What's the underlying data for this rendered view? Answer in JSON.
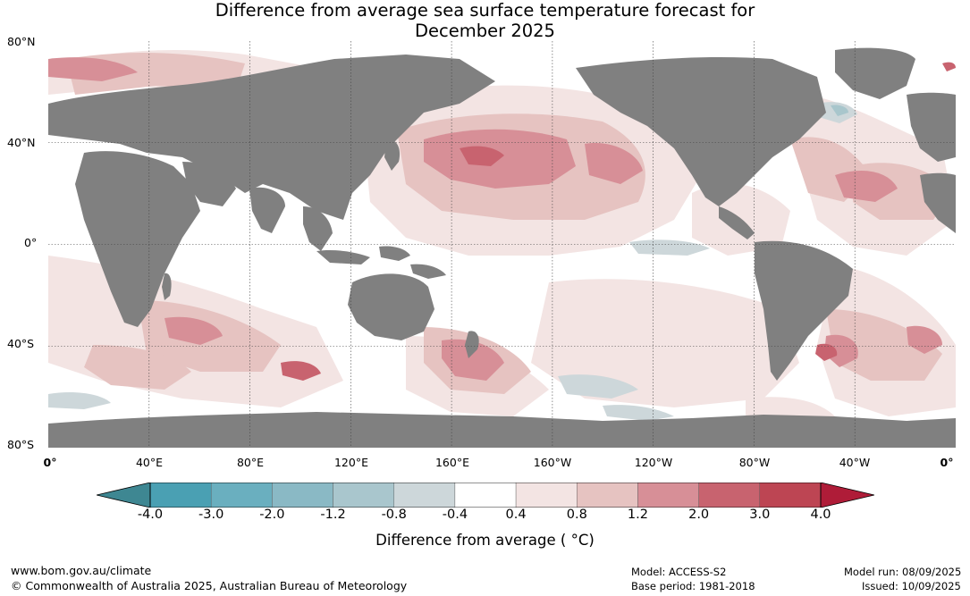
{
  "title": {
    "line1": "Difference from average sea surface temperature forecast for",
    "line2": "December 2025"
  },
  "map": {
    "latitude_labels": [
      "80°N",
      "40°N",
      "0°",
      "40°S",
      "80°S"
    ],
    "longitude_labels": [
      "0°",
      "40°E",
      "80°E",
      "120°E",
      "160°E",
      "160°W",
      "120°W",
      "80°W",
      "40°W",
      "0°"
    ],
    "colors": {
      "land": "#808080",
      "ocean_neutral": "#ffffff",
      "warm_0_4": "#f3e4e3",
      "warm_0_8": "#e6c3c1",
      "warm_1_2": "#d78f97",
      "warm_2_0": "#c8636f",
      "cool_0_4": "#cdd7da",
      "cool_0_8": "#a8c6cc"
    }
  },
  "colorbar": {
    "labels": [
      "-4.0",
      "-3.0",
      "-2.0",
      "-1.2",
      "-0.8",
      "-0.4",
      "0.4",
      "0.8",
      "1.2",
      "2.0",
      "3.0",
      "4.0"
    ],
    "colors": [
      "#4aa0b3",
      "#6aafbf",
      "#8ab9c5",
      "#a9c6cd",
      "#cdd7da",
      "#ffffff",
      "#f3e4e3",
      "#e6c3c1",
      "#d78f97",
      "#c8636f",
      "#bd4553"
    ],
    "under_color": "#3e8792",
    "over_color": "#af1c38",
    "title": "Difference from average ( °C)"
  },
  "footer": {
    "website": "www.bom.gov.au/climate",
    "copyright": "© Commonwealth of Australia 2025, Australian Bureau of Meteorology",
    "model": "Model: ACCESS-S2",
    "base_period": "Base period: 1981-2018",
    "model_run": "Model run: 08/09/2025",
    "issued": "Issued: 10/09/2025"
  }
}
